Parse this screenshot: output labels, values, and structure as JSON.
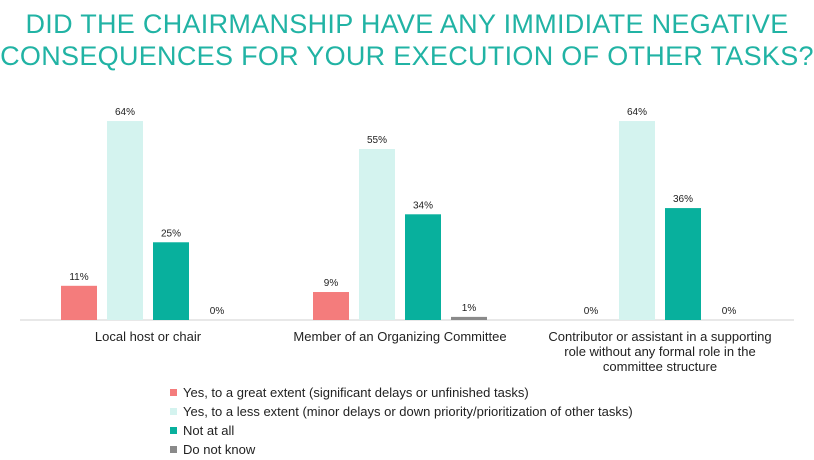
{
  "colors": {
    "title": "#21B3A4",
    "axis": "#d0d0d0",
    "series": [
      "#F47C7C",
      "#D4F3EF",
      "#08B09D",
      "#8A8A8A"
    ]
  },
  "chart_data": {
    "type": "bar",
    "title": "DID THE CHAIRMANSHIP HAVE ANY IMMIDIATE NEGATIVE CONSEQUENCES FOR YOUR EXECUTION OF OTHER TASKS?",
    "title_lines": [
      "DID THE CHAIRMANSHIP HAVE ANY IMMIDIATE NEGATIVE",
      "CONSEQUENCES FOR YOUR EXECUTION OF OTHER TASKS?"
    ],
    "categories": [
      "Local host or chair",
      "Member of an Organizing Committee",
      "Contributor or assistant in a supporting role without any formal role in the committee structure"
    ],
    "category_lines": [
      [
        "Local host or chair"
      ],
      [
        "Member of an Organizing Committee"
      ],
      [
        "Contributor or assistant in a supporting",
        "role without any formal role in the",
        "committee structure"
      ]
    ],
    "series": [
      {
        "name": "Yes, to a great extent (significant delays or unfinished tasks)",
        "values": [
          11,
          9,
          0
        ],
        "labels": [
          "11%",
          "9%",
          "0%"
        ]
      },
      {
        "name": "Yes, to a less extent (minor delays or down priority/prioritization of other tasks)",
        "values": [
          64,
          55,
          64
        ],
        "labels": [
          "64%",
          "55%",
          "64%"
        ]
      },
      {
        "name": "Not at all",
        "values": [
          25,
          34,
          36
        ],
        "labels": [
          "25%",
          "34%",
          "36%"
        ]
      },
      {
        "name": "Do not know",
        "values": [
          0,
          1,
          0
        ],
        "labels": [
          "0%",
          "1%",
          "0%"
        ]
      }
    ],
    "ylim": [
      0,
      70
    ],
    "grid": false,
    "legend_position": "bottom"
  }
}
